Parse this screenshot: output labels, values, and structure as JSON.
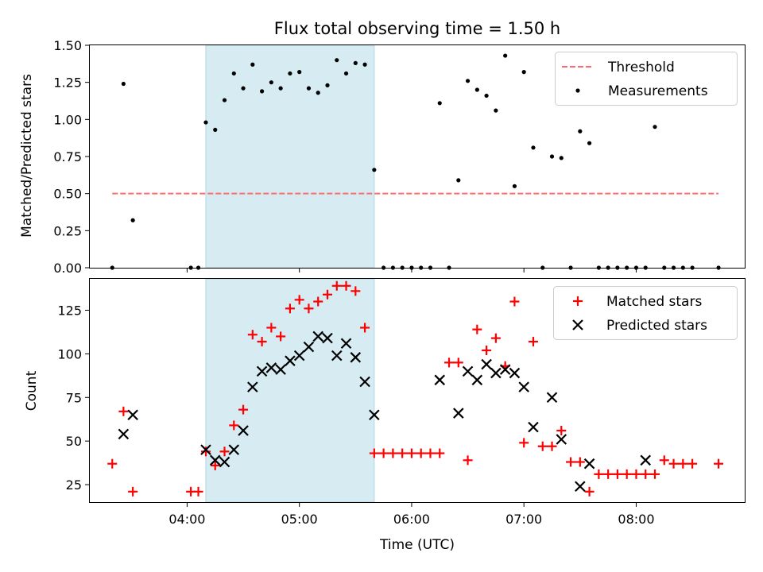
{
  "chart_data": [
    {
      "type": "scatter",
      "title": "Flux total observing time = 1.50 h",
      "xlabel": "",
      "ylabel": "Matched/Predicted stars",
      "ylim": [
        0,
        1.5
      ],
      "yticks": [
        0,
        0.25,
        0.5,
        0.75,
        1.0,
        1.25,
        1.5
      ],
      "yticklabels": [
        "0.00",
        "0.25",
        "0.50",
        "0.75",
        "1.00",
        "1.25",
        "1.50"
      ],
      "xlim": [
        "03:08",
        "08:58"
      ],
      "xticks": [
        "04:00",
        "05:00",
        "06:00",
        "07:00",
        "08:00"
      ],
      "shaded_span": [
        "04:10",
        "05:40"
      ],
      "shaded_color": "#add8e6",
      "legend_position": "top-right",
      "series": [
        {
          "name": "Threshold",
          "kind": "dashed-line",
          "color": "#ff6b6b",
          "x": [
            "03:20",
            "08:44"
          ],
          "y": [
            0.5,
            0.5
          ]
        },
        {
          "name": "Measurements",
          "kind": "dot",
          "color": "#000000",
          "x": [
            "03:20",
            "03:26",
            "03:31",
            "04:02",
            "04:06",
            "04:10",
            "04:15",
            "04:20",
            "04:25",
            "04:30",
            "04:35",
            "04:40",
            "04:45",
            "04:50",
            "04:55",
            "05:00",
            "05:05",
            "05:10",
            "05:15",
            "05:20",
            "05:25",
            "05:30",
            "05:35",
            "05:40",
            "05:45",
            "05:50",
            "05:55",
            "06:00",
            "06:05",
            "06:10",
            "06:15",
            "06:20",
            "06:25",
            "06:30",
            "06:35",
            "06:40",
            "06:45",
            "06:50",
            "06:55",
            "07:00",
            "07:05",
            "07:10",
            "07:15",
            "07:20",
            "07:25",
            "07:30",
            "07:35",
            "07:40",
            "07:45",
            "07:50",
            "07:55",
            "08:00",
            "08:05",
            "08:10",
            "08:15",
            "08:20",
            "08:25",
            "08:30",
            "08:44"
          ],
          "y": [
            0,
            1.24,
            0.32,
            0,
            0,
            0.98,
            0.93,
            1.13,
            1.31,
            1.21,
            1.37,
            1.19,
            1.25,
            1.21,
            1.31,
            1.32,
            1.21,
            1.18,
            1.23,
            1.4,
            1.31,
            1.38,
            1.37,
            0.66,
            0,
            0,
            0,
            0,
            0,
            0,
            1.11,
            0,
            0.59,
            1.26,
            1.2,
            1.16,
            1.06,
            1.43,
            0.55,
            1.32,
            0.81,
            0,
            0.75,
            0.74,
            0,
            0.92,
            0.84,
            0,
            0,
            0,
            0,
            0,
            0,
            0.95,
            0,
            0,
            0,
            0,
            0
          ]
        }
      ]
    },
    {
      "type": "scatter",
      "title": "",
      "xlabel": "Time (UTC)",
      "ylabel": "Count",
      "ylim": [
        15,
        143
      ],
      "yticks": [
        25,
        50,
        75,
        100,
        125
      ],
      "yticklabels": [
        "25",
        "50",
        "75",
        "100",
        "125"
      ],
      "xlim": [
        "03:08",
        "08:58"
      ],
      "xticks": [
        "04:00",
        "05:00",
        "06:00",
        "07:00",
        "08:00"
      ],
      "xticklabels": [
        "04:00",
        "05:00",
        "06:00",
        "07:00",
        "08:00"
      ],
      "shaded_span": [
        "04:10",
        "05:40"
      ],
      "shaded_color": "#add8e6",
      "legend_position": "top-right",
      "series": [
        {
          "name": "Matched stars",
          "kind": "plus",
          "color": "#ff0000",
          "x": [
            "03:20",
            "03:26",
            "03:31",
            "04:02",
            "04:06",
            "04:10",
            "04:15",
            "04:20",
            "04:25",
            "04:30",
            "04:35",
            "04:40",
            "04:45",
            "04:50",
            "04:55",
            "05:00",
            "05:05",
            "05:10",
            "05:15",
            "05:20",
            "05:25",
            "05:30",
            "05:35",
            "05:40",
            "05:45",
            "05:50",
            "05:55",
            "06:00",
            "06:05",
            "06:10",
            "06:15",
            "06:20",
            "06:25",
            "06:30",
            "06:35",
            "06:40",
            "06:45",
            "06:50",
            "06:55",
            "07:00",
            "07:05",
            "07:10",
            "07:15",
            "07:20",
            "07:25",
            "07:30",
            "07:35",
            "07:40",
            "07:45",
            "07:50",
            "07:55",
            "08:00",
            "08:05",
            "08:10",
            "08:15",
            "08:20",
            "08:25",
            "08:30",
            "08:44"
          ],
          "y": [
            37,
            67,
            21,
            21,
            21,
            44,
            36,
            44,
            59,
            68,
            111,
            107,
            115,
            110,
            126,
            131,
            126,
            130,
            134,
            139,
            139,
            136,
            115,
            43,
            43,
            43,
            43,
            43,
            43,
            43,
            43,
            95,
            95,
            39,
            114,
            102,
            109,
            93,
            130,
            49,
            107,
            47,
            47,
            56,
            38,
            38,
            21,
            31,
            31,
            31,
            31,
            31,
            31,
            31,
            39,
            37,
            37,
            37,
            37
          ]
        },
        {
          "name": "Predicted stars",
          "kind": "cross",
          "color": "#000000",
          "x": [
            "03:26",
            "03:31",
            "04:10",
            "04:15",
            "04:20",
            "04:25",
            "04:30",
            "04:35",
            "04:40",
            "04:45",
            "04:50",
            "04:55",
            "05:00",
            "05:05",
            "05:10",
            "05:15",
            "05:20",
            "05:25",
            "05:30",
            "05:35",
            "05:40",
            "06:15",
            "06:25",
            "06:30",
            "06:35",
            "06:40",
            "06:45",
            "06:50",
            "06:55",
            "07:00",
            "07:05",
            "07:15",
            "07:20",
            "07:30",
            "07:35",
            "08:05"
          ],
          "y": [
            54,
            65,
            45,
            39,
            38,
            45,
            56,
            81,
            90,
            92,
            91,
            96,
            99,
            104,
            110,
            109,
            99,
            106,
            98,
            84,
            65,
            85,
            66,
            90,
            85,
            94,
            89,
            91,
            89,
            81,
            58,
            75,
            51,
            24,
            37,
            39
          ]
        }
      ]
    }
  ]
}
